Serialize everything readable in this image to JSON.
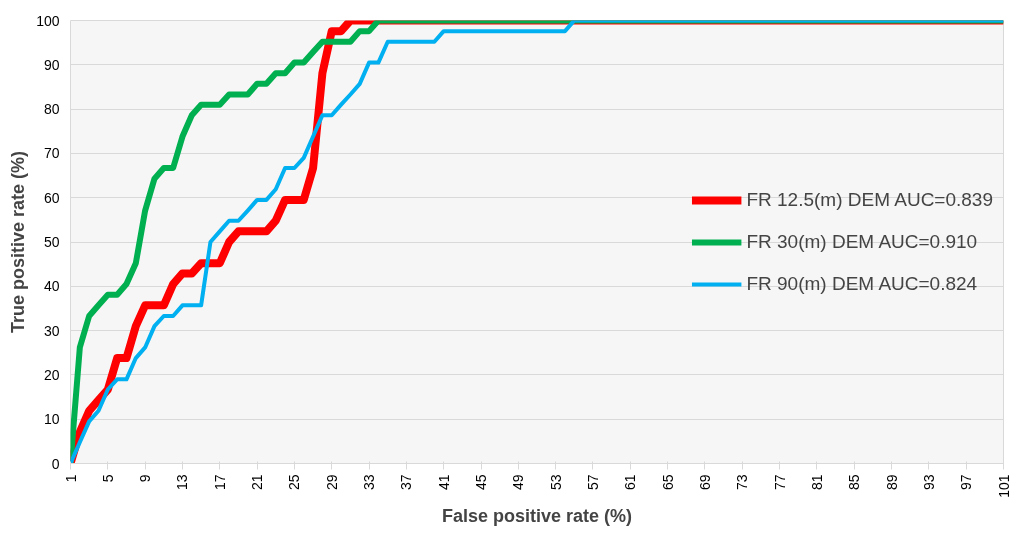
{
  "chart_data": {
    "type": "line",
    "xlabel": "False positive rate (%)",
    "ylabel": "True positive rate (%)",
    "xlim": [
      1,
      101
    ],
    "xticks": [
      1,
      5,
      9,
      13,
      17,
      21,
      25,
      29,
      33,
      37,
      41,
      45,
      49,
      53,
      57,
      61,
      65,
      69,
      73,
      77,
      81,
      85,
      89,
      93,
      97,
      101
    ],
    "ylim": [
      0,
      100
    ],
    "yticks": [
      0,
      10,
      20,
      30,
      40,
      50,
      60,
      70,
      80,
      90,
      100
    ],
    "grid": "y",
    "legend": "right",
    "marker": "none",
    "line_style": "solid",
    "series": [
      {
        "name": "FR 12.5(m) DEM AUC=0.839",
        "color": "#ff0000",
        "x": [
          1,
          2,
          3,
          4,
          5,
          6,
          7,
          8,
          9,
          11,
          12,
          13,
          14,
          15,
          17,
          18,
          19,
          22,
          23,
          24,
          26,
          27,
          28,
          29,
          30,
          31,
          101
        ],
        "values": [
          0,
          7.1,
          11.9,
          14.3,
          16.7,
          23.8,
          23.8,
          31,
          35.7,
          35.7,
          40.5,
          42.9,
          42.9,
          45.2,
          45.2,
          50,
          52.4,
          52.4,
          54.8,
          59.5,
          59.5,
          66.7,
          88.1,
          97.6,
          97.6,
          100,
          100
        ]
      },
      {
        "name": "FR 30(m) DEM AUC=0.910",
        "color": "#00b050",
        "x": [
          1,
          2,
          3,
          4,
          5,
          6,
          7,
          8,
          9,
          10,
          11,
          12,
          13,
          14,
          15,
          17,
          18,
          20,
          21,
          22,
          23,
          24,
          25,
          26,
          27,
          28,
          31,
          32,
          33,
          34,
          101
        ],
        "values": [
          0,
          26.2,
          33.3,
          35.7,
          38.1,
          38.1,
          40.5,
          45.2,
          57.1,
          64.3,
          66.7,
          66.7,
          73.8,
          78.6,
          81,
          81,
          83.3,
          83.3,
          85.7,
          85.7,
          88.1,
          88.1,
          90.5,
          90.5,
          92.9,
          95.2,
          95.2,
          97.6,
          97.6,
          100,
          100
        ]
      },
      {
        "name": "FR 90(m) DEM AUC=0.824",
        "color": "#00b0f0",
        "x": [
          1,
          2,
          3,
          4,
          5,
          6,
          7,
          8,
          9,
          10,
          11,
          12,
          13,
          15,
          16,
          17,
          18,
          19,
          20,
          21,
          22,
          23,
          24,
          25,
          26,
          27,
          28,
          29,
          30,
          31,
          32,
          33,
          34,
          35,
          40,
          41,
          54,
          55,
          101
        ],
        "values": [
          0,
          4.8,
          9.5,
          11.9,
          16.7,
          19,
          19,
          23.8,
          26.2,
          31,
          33.3,
          33.3,
          35.7,
          35.7,
          50,
          52.4,
          54.8,
          54.8,
          57.1,
          59.5,
          59.5,
          61.9,
          66.7,
          66.7,
          69,
          73.8,
          78.6,
          78.6,
          81,
          83.3,
          85.7,
          90.5,
          90.5,
          95.2,
          95.2,
          97.6,
          97.6,
          100,
          100
        ]
      }
    ]
  }
}
